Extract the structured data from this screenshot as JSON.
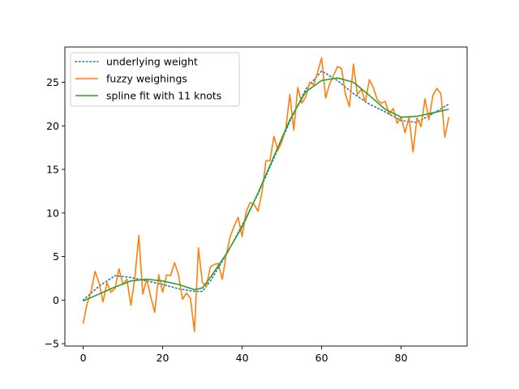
{
  "chart_data": {
    "type": "line",
    "title": "",
    "xlabel": "",
    "ylabel": "",
    "xlim": [
      -4.6,
      96.6
    ],
    "ylim": [
      -5.27,
      29.05
    ],
    "x_ticks": [
      0,
      20,
      40,
      60,
      80
    ],
    "y_ticks": [
      -5,
      0,
      5,
      10,
      15,
      20,
      25
    ],
    "x_tick_labels": [
      "0",
      "20",
      "40",
      "60",
      "80"
    ],
    "y_tick_labels": [
      "−5",
      "0",
      "5",
      "10",
      "15",
      "20",
      "25"
    ],
    "grid": false,
    "legend_position": "upper-left",
    "series": [
      {
        "name": "underlying weight",
        "style": "dotted",
        "color": "#1f77b4",
        "x": [
          0,
          4,
          8,
          12,
          16,
          20,
          24,
          28,
          30,
          32,
          36,
          40,
          44,
          48,
          52,
          56,
          60,
          64,
          68,
          72,
          76,
          80,
          84,
          88,
          92
        ],
        "y": [
          0.0,
          1.6,
          2.8,
          2.6,
          2.2,
          1.8,
          1.3,
          1.0,
          1.0,
          2.2,
          5.2,
          8.6,
          12.2,
          16.3,
          20.5,
          24.2,
          26.3,
          25.2,
          23.7,
          22.5,
          21.6,
          20.6,
          20.4,
          21.4,
          22.5
        ]
      },
      {
        "name": "fuzzy weighings",
        "style": "solid",
        "color": "#ff7f0e",
        "x": [
          0,
          1,
          2,
          3,
          4,
          5,
          6,
          7,
          8,
          9,
          10,
          11,
          12,
          13,
          14,
          15,
          16,
          17,
          18,
          19,
          20,
          21,
          22,
          23,
          24,
          25,
          26,
          27,
          28,
          29,
          30,
          31,
          32,
          33,
          34,
          35,
          36,
          37,
          38,
          39,
          40,
          41,
          42,
          43,
          44,
          45,
          46,
          47,
          48,
          49,
          50,
          51,
          52,
          53,
          54,
          55,
          56,
          57,
          58,
          59,
          60,
          61,
          62,
          63,
          64,
          65,
          66,
          67,
          68,
          69,
          70,
          71,
          72,
          73,
          74,
          75,
          76,
          77,
          78,
          79,
          80,
          81,
          82,
          83,
          84,
          85,
          86,
          87,
          88,
          89,
          90,
          91,
          92
        ],
        "y": [
          -2.7,
          -0.4,
          1.0,
          3.3,
          2.0,
          -0.2,
          2.0,
          0.9,
          1.3,
          3.6,
          1.8,
          2.4,
          -0.6,
          2.5,
          7.4,
          0.7,
          2.4,
          0.4,
          -1.4,
          2.9,
          0.9,
          2.9,
          2.8,
          4.3,
          2.9,
          0.1,
          0.8,
          0.2,
          -3.6,
          6.0,
          2.0,
          1.6,
          3.8,
          4.1,
          4.2,
          2.4,
          5.2,
          7.3,
          8.5,
          9.5,
          7.3,
          10.1,
          11.2,
          11.0,
          10.2,
          12.4,
          16.0,
          16.0,
          18.8,
          17.2,
          18.2,
          19.7,
          23.6,
          19.5,
          24.4,
          22.6,
          23.3,
          25.0,
          24.7,
          26.2,
          27.8,
          23.2,
          24.8,
          25.8,
          26.8,
          26.6,
          23.6,
          22.2,
          27.1,
          23.6,
          24.2,
          22.7,
          25.3,
          24.4,
          23.0,
          22.6,
          22.8,
          21.3,
          22.0,
          20.3,
          21.0,
          19.2,
          21.0,
          17.0,
          20.9,
          19.9,
          23.1,
          20.7,
          23.5,
          24.3,
          23.7,
          18.7,
          21.0
        ]
      },
      {
        "name": "spline fit with 11 knots",
        "style": "solid",
        "color": "#2ca02c",
        "x": [
          0,
          4,
          8,
          12,
          16,
          20,
          24,
          28,
          30,
          32,
          36,
          40,
          44,
          48,
          52,
          56,
          60,
          64,
          68,
          72,
          76,
          80,
          84,
          88,
          92
        ],
        "y": [
          -0.1,
          0.7,
          1.5,
          2.2,
          2.4,
          2.2,
          1.8,
          1.2,
          1.4,
          2.6,
          5.3,
          8.4,
          12.3,
          16.5,
          20.7,
          23.9,
          25.2,
          25.5,
          25.0,
          23.5,
          21.9,
          21.0,
          21.1,
          21.5,
          21.9
        ]
      }
    ]
  }
}
